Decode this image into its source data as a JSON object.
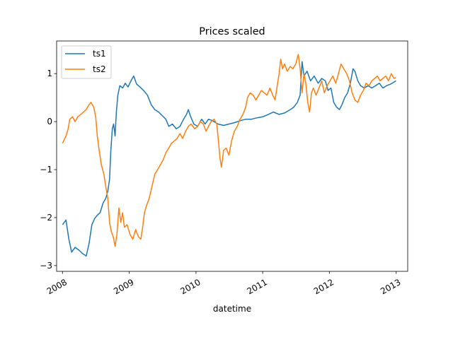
{
  "chart_data": {
    "type": "line",
    "title": "Prices scaled",
    "xlabel": "datetime",
    "ylabel": "",
    "xlim": [
      "2007-11-30",
      "2013-03-05"
    ],
    "ylim": [
      -3.12,
      1.68
    ],
    "x_ticks": [
      "2008",
      "2009",
      "2010",
      "2011",
      "2012",
      "2013"
    ],
    "y_ticks": [
      -3,
      -2,
      -1,
      0,
      1
    ],
    "grid": false,
    "legend_position": "upper left",
    "series": [
      {
        "name": "ts1",
        "color": "#1f77b4",
        "points": [
          [
            "2008-01-01",
            -2.15
          ],
          [
            "2008-01-20",
            -2.05
          ],
          [
            "2008-02-05",
            -2.45
          ],
          [
            "2008-02-20",
            -2.72
          ],
          [
            "2008-03-10",
            -2.62
          ],
          [
            "2008-04-01",
            -2.68
          ],
          [
            "2008-04-20",
            -2.75
          ],
          [
            "2008-05-10",
            -2.8
          ],
          [
            "2008-05-25",
            -2.55
          ],
          [
            "2008-06-10",
            -2.15
          ],
          [
            "2008-06-25",
            -2.02
          ],
          [
            "2008-07-10",
            -1.95
          ],
          [
            "2008-07-25",
            -1.9
          ],
          [
            "2008-08-10",
            -1.7
          ],
          [
            "2008-08-25",
            -1.6
          ],
          [
            "2008-09-05",
            -1.45
          ],
          [
            "2008-09-15",
            -1.2
          ],
          [
            "2008-09-22",
            -0.6
          ],
          [
            "2008-09-30",
            -0.15
          ],
          [
            "2008-10-07",
            -0.05
          ],
          [
            "2008-10-15",
            -0.3
          ],
          [
            "2008-10-22",
            0.2
          ],
          [
            "2008-10-30",
            0.55
          ],
          [
            "2008-11-10",
            0.75
          ],
          [
            "2008-11-25",
            0.7
          ],
          [
            "2008-12-10",
            0.8
          ],
          [
            "2008-12-25",
            0.72
          ],
          [
            "2009-01-10",
            0.85
          ],
          [
            "2009-01-25",
            0.95
          ],
          [
            "2009-02-10",
            0.78
          ],
          [
            "2009-03-01",
            0.72
          ],
          [
            "2009-03-20",
            0.65
          ],
          [
            "2009-04-10",
            0.55
          ],
          [
            "2009-05-01",
            0.35
          ],
          [
            "2009-05-20",
            0.25
          ],
          [
            "2009-06-10",
            0.2
          ],
          [
            "2009-07-01",
            0.12
          ],
          [
            "2009-07-20",
            0.05
          ],
          [
            "2009-08-05",
            -0.1
          ],
          [
            "2009-08-25",
            -0.05
          ],
          [
            "2009-09-15",
            -0.15
          ],
          [
            "2009-10-05",
            -0.1
          ],
          [
            "2009-10-25",
            0.05
          ],
          [
            "2009-11-10",
            0.15
          ],
          [
            "2009-11-20",
            0.25
          ],
          [
            "2009-12-01",
            0.12
          ],
          [
            "2009-12-20",
            -0.05
          ],
          [
            "2010-01-10",
            -0.1
          ],
          [
            "2010-02-01",
            0.05
          ],
          [
            "2010-02-20",
            -0.05
          ],
          [
            "2010-03-10",
            0.05
          ],
          [
            "2010-04-01",
            0.02
          ],
          [
            "2010-05-01",
            -0.05
          ],
          [
            "2010-06-01",
            -0.08
          ],
          [
            "2010-07-01",
            -0.05
          ],
          [
            "2010-08-01",
            -0.02
          ],
          [
            "2010-09-01",
            0.02
          ],
          [
            "2010-10-01",
            0.05
          ],
          [
            "2010-11-01",
            0.05
          ],
          [
            "2010-12-01",
            0.08
          ],
          [
            "2011-01-01",
            0.1
          ],
          [
            "2011-02-01",
            0.15
          ],
          [
            "2011-03-01",
            0.2
          ],
          [
            "2011-04-01",
            0.15
          ],
          [
            "2011-05-01",
            0.18
          ],
          [
            "2011-06-01",
            0.25
          ],
          [
            "2011-06-20",
            0.3
          ],
          [
            "2011-07-10",
            0.4
          ],
          [
            "2011-07-25",
            0.55
          ],
          [
            "2011-08-05",
            1.25
          ],
          [
            "2011-08-15",
            0.95
          ],
          [
            "2011-09-01",
            1.05
          ],
          [
            "2011-09-20",
            0.85
          ],
          [
            "2011-10-10",
            0.95
          ],
          [
            "2011-11-01",
            0.8
          ],
          [
            "2011-11-20",
            0.9
          ],
          [
            "2011-12-10",
            0.85
          ],
          [
            "2011-12-25",
            0.65
          ],
          [
            "2012-01-10",
            0.7
          ],
          [
            "2012-01-25",
            0.4
          ],
          [
            "2012-02-10",
            0.3
          ],
          [
            "2012-02-25",
            0.25
          ],
          [
            "2012-03-10",
            0.35
          ],
          [
            "2012-03-25",
            0.5
          ],
          [
            "2012-04-10",
            0.6
          ],
          [
            "2012-04-25",
            0.8
          ],
          [
            "2012-05-10",
            1.1
          ],
          [
            "2012-05-20",
            1.05
          ],
          [
            "2012-06-05",
            0.85
          ],
          [
            "2012-06-20",
            0.75
          ],
          [
            "2012-07-10",
            0.7
          ],
          [
            "2012-08-01",
            0.75
          ],
          [
            "2012-08-20",
            0.7
          ],
          [
            "2012-09-10",
            0.75
          ],
          [
            "2012-10-01",
            0.8
          ],
          [
            "2012-10-20",
            0.7
          ],
          [
            "2012-11-10",
            0.75
          ],
          [
            "2012-12-01",
            0.78
          ],
          [
            "2012-12-31",
            0.85
          ]
        ]
      },
      {
        "name": "ts2",
        "color": "#ff7f0e",
        "points": [
          [
            "2008-01-01",
            -0.45
          ],
          [
            "2008-01-20",
            -0.3
          ],
          [
            "2008-02-01",
            -0.15
          ],
          [
            "2008-02-10",
            0.05
          ],
          [
            "2008-02-25",
            0.1
          ],
          [
            "2008-03-10",
            0.0
          ],
          [
            "2008-03-25",
            0.1
          ],
          [
            "2008-04-10",
            0.15
          ],
          [
            "2008-04-25",
            0.2
          ],
          [
            "2008-05-10",
            0.25
          ],
          [
            "2008-05-25",
            0.35
          ],
          [
            "2008-06-05",
            0.4
          ],
          [
            "2008-06-20",
            0.3
          ],
          [
            "2008-07-01",
            0.1
          ],
          [
            "2008-07-10",
            -0.3
          ],
          [
            "2008-07-20",
            -0.6
          ],
          [
            "2008-08-01",
            -0.9
          ],
          [
            "2008-08-15",
            -1.1
          ],
          [
            "2008-08-25",
            -1.35
          ],
          [
            "2008-09-05",
            -1.6
          ],
          [
            "2008-09-15",
            -2.1
          ],
          [
            "2008-09-25",
            -2.3
          ],
          [
            "2008-10-05",
            -2.4
          ],
          [
            "2008-10-15",
            -2.6
          ],
          [
            "2008-10-25",
            -2.35
          ],
          [
            "2008-11-05",
            -1.8
          ],
          [
            "2008-11-15",
            -2.1
          ],
          [
            "2008-11-25",
            -1.9
          ],
          [
            "2008-12-05",
            -2.2
          ],
          [
            "2008-12-20",
            -2.15
          ],
          [
            "2009-01-05",
            -2.35
          ],
          [
            "2009-01-20",
            -2.45
          ],
          [
            "2009-02-05",
            -2.25
          ],
          [
            "2009-02-20",
            -2.4
          ],
          [
            "2009-03-05",
            -2.45
          ],
          [
            "2009-03-15",
            -2.2
          ],
          [
            "2009-03-25",
            -1.9
          ],
          [
            "2009-04-05",
            -1.75
          ],
          [
            "2009-04-20",
            -1.6
          ],
          [
            "2009-05-05",
            -1.35
          ],
          [
            "2009-05-20",
            -1.1
          ],
          [
            "2009-06-05",
            -1.0
          ],
          [
            "2009-06-20",
            -0.9
          ],
          [
            "2009-07-05",
            -0.8
          ],
          [
            "2009-07-20",
            -0.65
          ],
          [
            "2009-08-05",
            -0.55
          ],
          [
            "2009-08-20",
            -0.45
          ],
          [
            "2009-09-05",
            -0.4
          ],
          [
            "2009-09-20",
            -0.35
          ],
          [
            "2009-10-05",
            -0.25
          ],
          [
            "2009-10-20",
            -0.35
          ],
          [
            "2009-11-05",
            -0.2
          ],
          [
            "2009-11-20",
            -0.1
          ],
          [
            "2009-12-05",
            -0.05
          ],
          [
            "2009-12-25",
            -0.15
          ],
          [
            "2010-01-10",
            -0.1
          ],
          [
            "2010-01-25",
            0.0
          ],
          [
            "2010-02-10",
            -0.05
          ],
          [
            "2010-02-25",
            -0.2
          ],
          [
            "2010-03-10",
            -0.1
          ],
          [
            "2010-03-25",
            0.0
          ],
          [
            "2010-04-10",
            0.05
          ],
          [
            "2010-04-25",
            -0.05
          ],
          [
            "2010-05-05",
            -0.45
          ],
          [
            "2010-05-12",
            -0.75
          ],
          [
            "2010-05-20",
            -0.95
          ],
          [
            "2010-06-01",
            -0.6
          ],
          [
            "2010-06-15",
            -0.55
          ],
          [
            "2010-06-30",
            -0.7
          ],
          [
            "2010-07-15",
            -0.4
          ],
          [
            "2010-07-30",
            -0.2
          ],
          [
            "2010-08-15",
            -0.1
          ],
          [
            "2010-08-30",
            0.05
          ],
          [
            "2010-09-15",
            0.15
          ],
          [
            "2010-09-30",
            0.3
          ],
          [
            "2010-10-10",
            0.5
          ],
          [
            "2010-10-25",
            0.6
          ],
          [
            "2010-11-10",
            0.55
          ],
          [
            "2010-11-25",
            0.45
          ],
          [
            "2010-12-10",
            0.55
          ],
          [
            "2010-12-25",
            0.65
          ],
          [
            "2011-01-10",
            0.6
          ],
          [
            "2011-01-25",
            0.55
          ],
          [
            "2011-02-10",
            0.7
          ],
          [
            "2011-02-25",
            0.55
          ],
          [
            "2011-03-10",
            0.45
          ],
          [
            "2011-03-20",
            0.7
          ],
          [
            "2011-04-01",
            1.0
          ],
          [
            "2011-04-10",
            1.3
          ],
          [
            "2011-04-20",
            1.1
          ],
          [
            "2011-05-01",
            1.2
          ],
          [
            "2011-05-15",
            1.05
          ],
          [
            "2011-06-01",
            1.15
          ],
          [
            "2011-06-15",
            1.1
          ],
          [
            "2011-07-01",
            1.2
          ],
          [
            "2011-07-15",
            1.4
          ],
          [
            "2011-07-25",
            1.1
          ],
          [
            "2011-08-05",
            0.6
          ],
          [
            "2011-08-15",
            1.0
          ],
          [
            "2011-08-25",
            0.8
          ],
          [
            "2011-09-05",
            0.4
          ],
          [
            "2011-09-15",
            0.2
          ],
          [
            "2011-09-25",
            0.6
          ],
          [
            "2011-10-05",
            0.7
          ],
          [
            "2011-10-20",
            0.55
          ],
          [
            "2011-11-05",
            0.7
          ],
          [
            "2011-11-20",
            0.85
          ],
          [
            "2011-12-05",
            0.6
          ],
          [
            "2011-12-20",
            0.75
          ],
          [
            "2012-01-05",
            0.85
          ],
          [
            "2012-01-20",
            0.95
          ],
          [
            "2012-02-05",
            0.8
          ],
          [
            "2012-02-20",
            1.0
          ],
          [
            "2012-03-05",
            1.2
          ],
          [
            "2012-03-20",
            1.1
          ],
          [
            "2012-04-05",
            1.0
          ],
          [
            "2012-04-20",
            0.85
          ],
          [
            "2012-05-05",
            0.6
          ],
          [
            "2012-05-20",
            0.45
          ],
          [
            "2012-06-05",
            0.4
          ],
          [
            "2012-06-20",
            0.55
          ],
          [
            "2012-07-05",
            0.65
          ],
          [
            "2012-07-20",
            0.8
          ],
          [
            "2012-08-05",
            0.75
          ],
          [
            "2012-08-20",
            0.85
          ],
          [
            "2012-09-05",
            0.9
          ],
          [
            "2012-09-20",
            0.95
          ],
          [
            "2012-10-05",
            0.85
          ],
          [
            "2012-10-20",
            0.9
          ],
          [
            "2012-11-05",
            0.95
          ],
          [
            "2012-11-20",
            0.85
          ],
          [
            "2012-12-05",
            1.0
          ],
          [
            "2012-12-20",
            0.9
          ],
          [
            "2012-12-31",
            0.92
          ]
        ]
      }
    ]
  }
}
